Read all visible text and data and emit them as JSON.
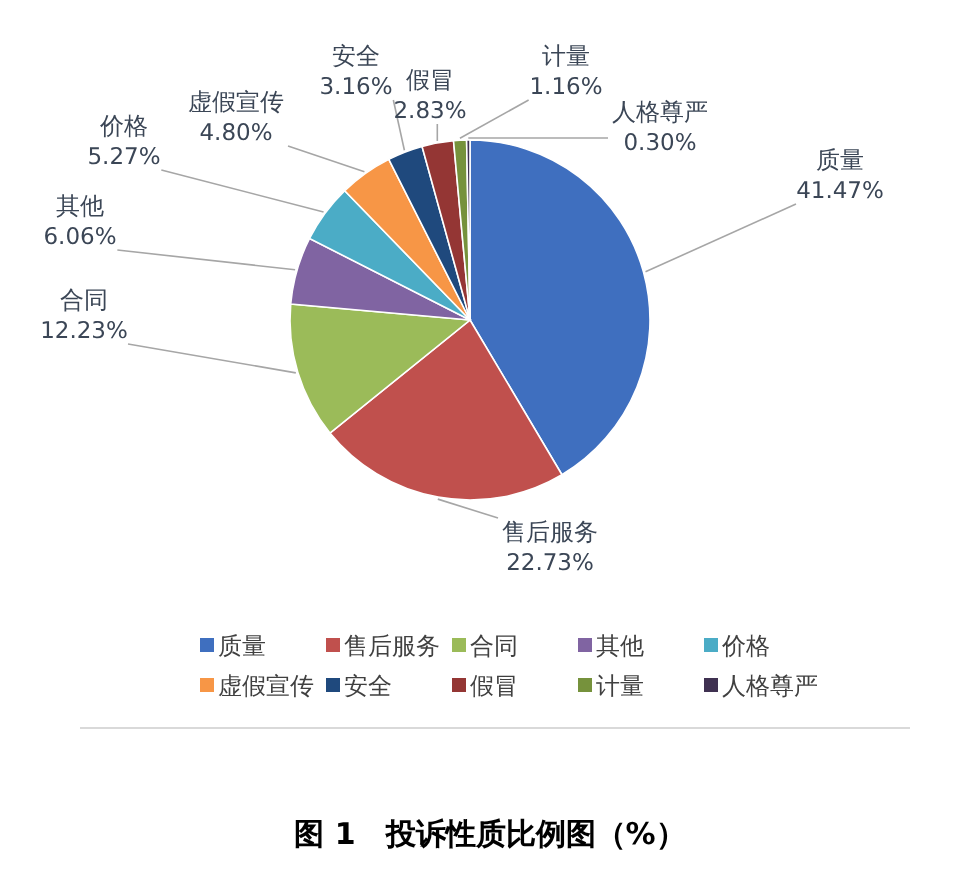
{
  "chart_data": {
    "type": "pie",
    "title": "图 1　投诉性质比例图（%）",
    "categories": [
      "质量",
      "售后服务",
      "合同",
      "其他",
      "价格",
      "虚假宣传",
      "安全",
      "假冒",
      "计量",
      "人格尊严"
    ],
    "values": [
      41.47,
      22.73,
      12.23,
      6.06,
      5.27,
      4.8,
      3.16,
      2.83,
      1.16,
      0.3
    ],
    "colors": [
      "#3f6fbf",
      "#c0504d",
      "#9bbb59",
      "#8064a2",
      "#4bacc6",
      "#f79646",
      "#1f497d",
      "#943634",
      "#76923c",
      "#3f3151"
    ],
    "value_labels": [
      "41.47%",
      "22.73%",
      "12.23%",
      "6.06%",
      "5.27%",
      "4.80%",
      "3.16%",
      "2.83%",
      "1.16%",
      "0.30%"
    ],
    "legend": "bottom"
  }
}
